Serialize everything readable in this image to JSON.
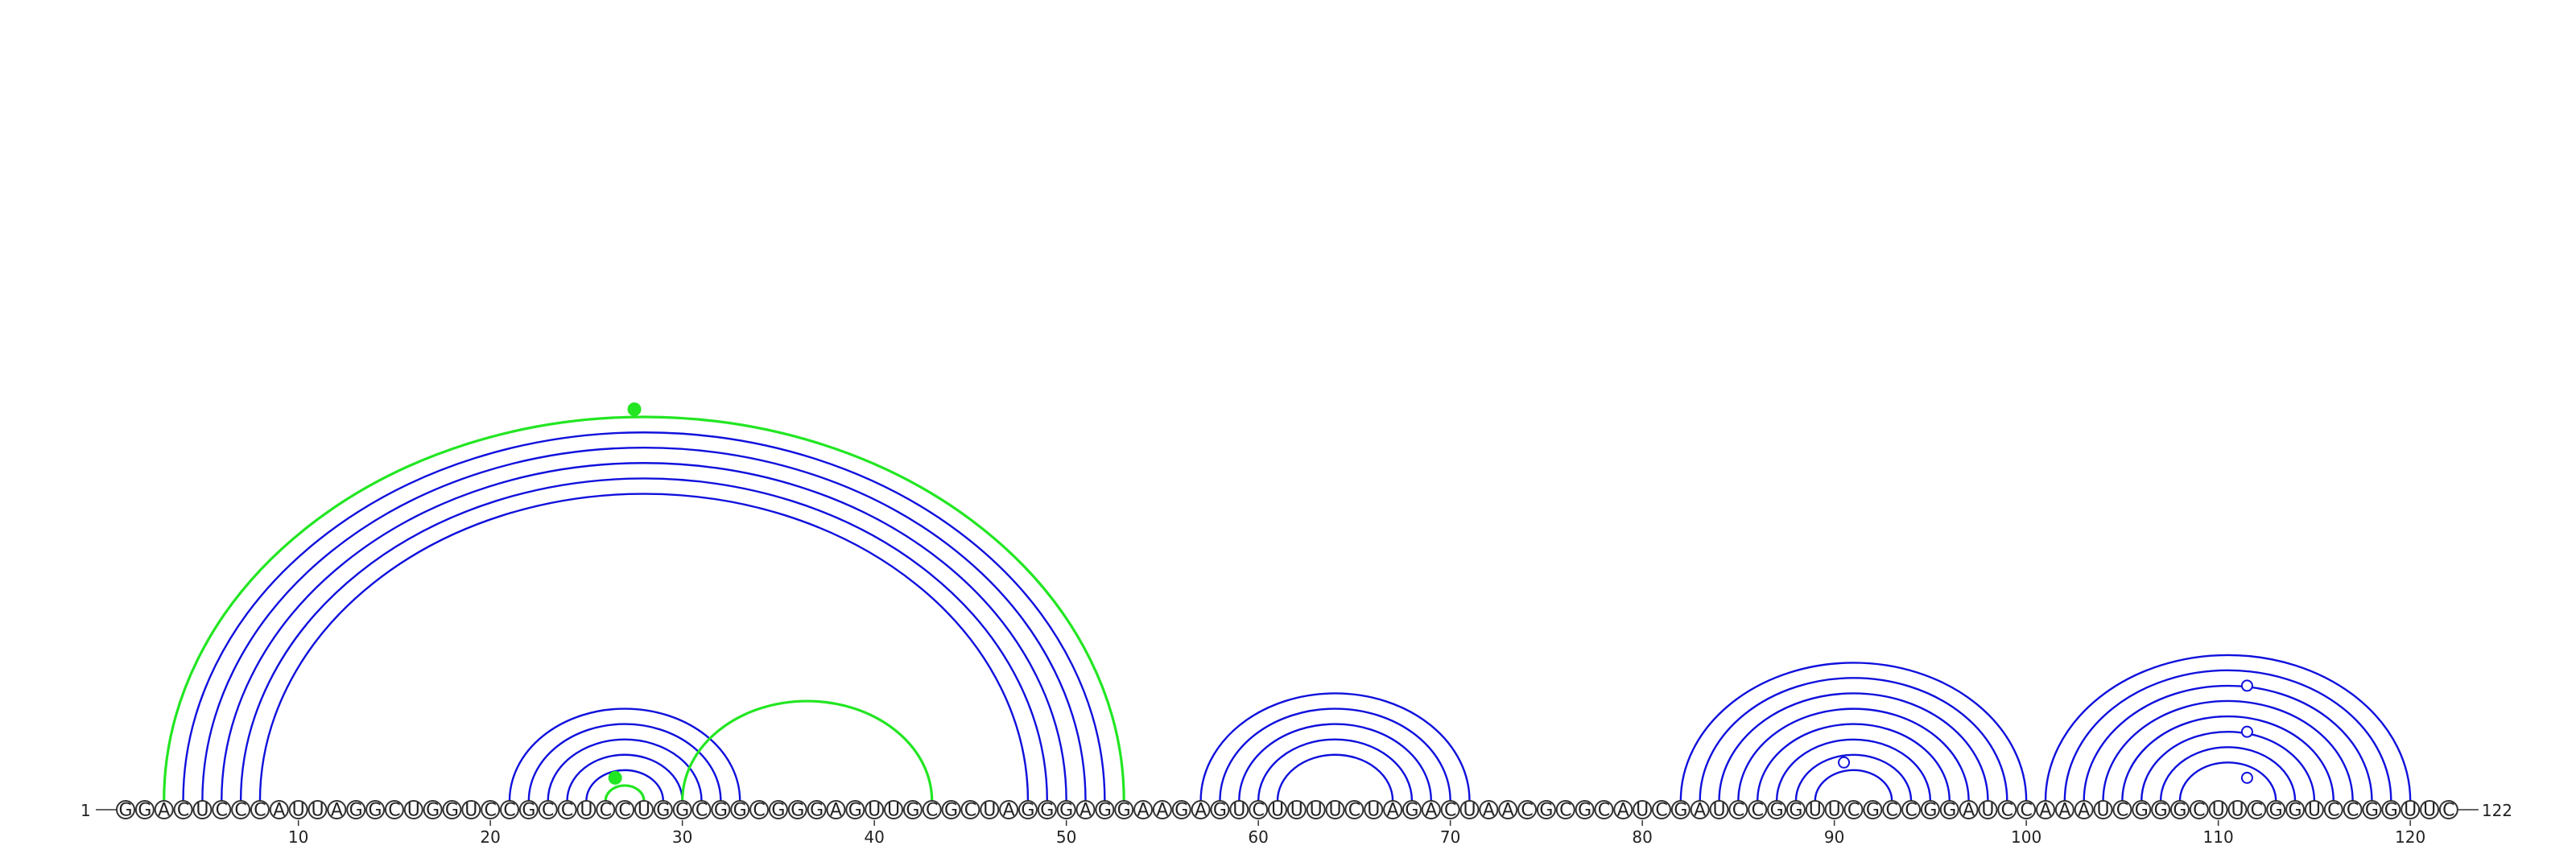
{
  "sequence": "GGACUCCCAUUAGGCUGGUCCGCCUCCUGGCGGCGGGAGUUGCGCUAGGGAGGAAGAGUCUUUUCUAGACUAACGCGCAUCGAUCCGGUUCGCCGGAUCCAAAUCGGGCUUCGGUCCGGUUC",
  "length": 122,
  "start_label": "1",
  "end_label": "122",
  "tick_labels": [
    "10",
    "20",
    "30",
    "40",
    "50",
    "60",
    "70",
    "80",
    "90",
    "100",
    "110",
    "120"
  ],
  "colors": {
    "primary": "#1010dd",
    "alternate": "#22e622",
    "outline": "#333333"
  },
  "chart_data": {
    "type": "arc",
    "title": "",
    "x_range": [
      1,
      122
    ],
    "helices": [
      {
        "group": "primary",
        "pairs": [
          [
            4,
            52
          ],
          [
            5,
            51
          ],
          [
            6,
            50
          ],
          [
            7,
            49
          ],
          [
            8,
            48
          ]
        ]
      },
      {
        "group": "primary",
        "pairs": [
          [
            21,
            33
          ],
          [
            22,
            32
          ],
          [
            23,
            31
          ],
          [
            24,
            30
          ],
          [
            25,
            29
          ],
          [
            26,
            28
          ]
        ]
      },
      {
        "group": "primary",
        "pairs": [
          [
            57,
            71
          ],
          [
            58,
            70
          ],
          [
            59,
            69
          ],
          [
            60,
            68
          ],
          [
            61,
            67
          ]
        ]
      },
      {
        "group": "primary",
        "pairs": [
          [
            82,
            100
          ],
          [
            83,
            99
          ],
          [
            84,
            98
          ],
          [
            85,
            97
          ],
          [
            86,
            96
          ],
          [
            87,
            95
          ],
          [
            88,
            94
          ],
          [
            89,
            93
          ]
        ]
      },
      {
        "group": "primary",
        "pairs": [
          [
            101,
            120
          ],
          [
            102,
            119
          ],
          [
            103,
            118
          ],
          [
            104,
            117
          ],
          [
            105,
            116
          ],
          [
            106,
            115
          ],
          [
            107,
            114
          ],
          [
            108,
            113
          ]
        ]
      }
    ],
    "alternate_pairs": [
      [
        3,
        53
      ],
      [
        26,
        28
      ],
      [
        30,
        43
      ]
    ],
    "markers": [
      {
        "group": "alternate",
        "position": 27.5,
        "level": 53
      },
      {
        "group": "alternate",
        "position": 26.5,
        "level": 28
      },
      {
        "group": "primary",
        "position": 90.5,
        "level": 93
      },
      {
        "group": "primary",
        "position": 111.5,
        "level": 116
      },
      {
        "group": "primary",
        "position": 111.5,
        "level": 113
      },
      {
        "group": "primary",
        "position": 111.5,
        "level": 119
      }
    ]
  }
}
